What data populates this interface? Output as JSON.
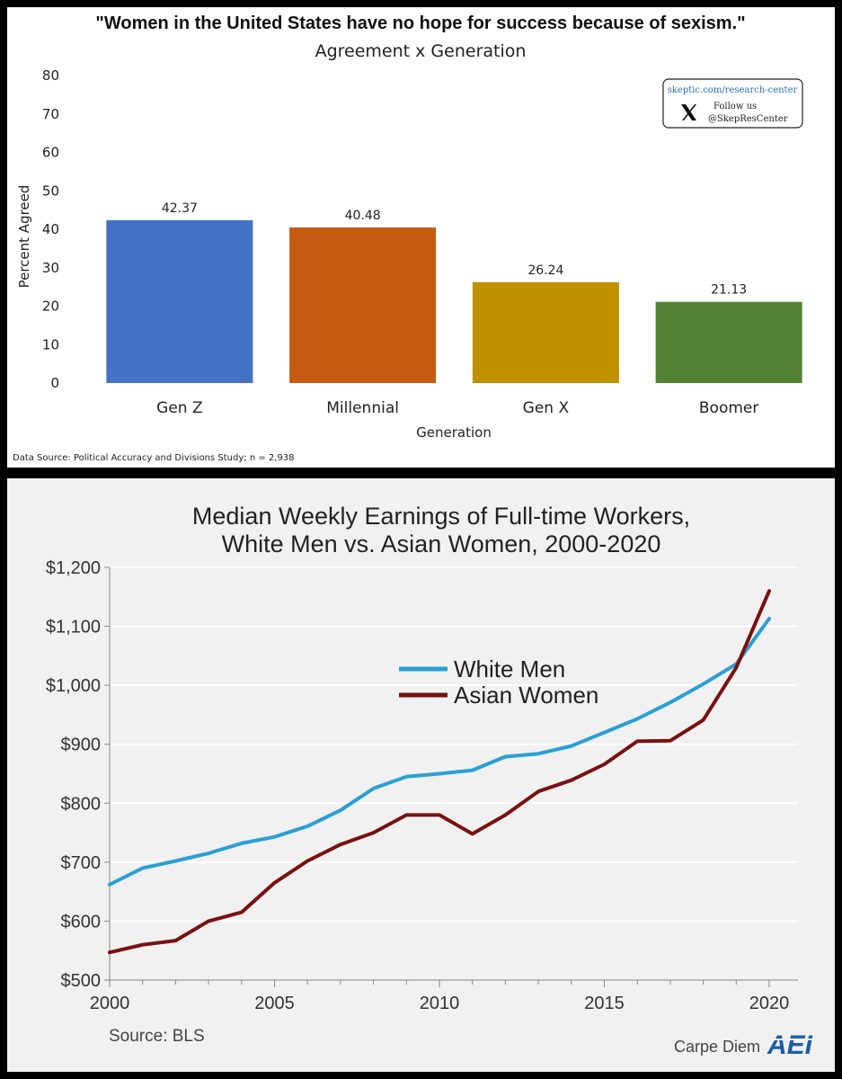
{
  "chart_data": [
    {
      "type": "bar",
      "title": "\"Women in the United States have no hope for success because of sexism.\"",
      "subtitle": "Agreement x Generation",
      "xlabel": "Generation",
      "ylabel": "Percent Agreed",
      "categories": [
        "Gen Z",
        "Millennial",
        "Gen X",
        "Boomer"
      ],
      "values": [
        42.37,
        40.48,
        26.24,
        21.13
      ],
      "value_labels": [
        "42.37",
        "40.48",
        "26.24",
        "21.13"
      ],
      "colors": [
        "#4472c4",
        "#c55a11",
        "#bf9000",
        "#548235"
      ],
      "ylim": [
        0,
        80
      ],
      "yticks": [
        0,
        10,
        20,
        30,
        40,
        50,
        60,
        70,
        80
      ],
      "ytick_labels": [
        "0",
        "10",
        "20",
        "30",
        "40",
        "50",
        "60",
        "70",
        "80"
      ],
      "grid": false,
      "source": "Data Source: Political Accuracy and Divisions Study; n = 2,938",
      "badge": {
        "url": "skeptic.com/research-center",
        "line1": "Follow us",
        "line2": "@SkepResCenter",
        "icon": "x-logo-icon"
      }
    },
    {
      "type": "line",
      "title": [
        "Median Weekly Earnings of Full-time Workers,",
        "White Men vs. Asian Women, 2000-2020"
      ],
      "x": [
        2000,
        2001,
        2002,
        2003,
        2004,
        2005,
        2006,
        2007,
        2008,
        2009,
        2010,
        2011,
        2012,
        2013,
        2014,
        2015,
        2016,
        2017,
        2018,
        2019,
        2020
      ],
      "series": [
        {
          "name": "White Men",
          "color": "#2a9fd6",
          "values": [
            662,
            690,
            702,
            715,
            732,
            743,
            761,
            788,
            825,
            845,
            850,
            856,
            879,
            884,
            897,
            920,
            943,
            971,
            1002,
            1036,
            1113
          ]
        },
        {
          "name": "Asian Women",
          "color": "#7a1010",
          "values": [
            547,
            560,
            567,
            600,
            615,
            665,
            702,
            730,
            750,
            780,
            780,
            748,
            780,
            820,
            839,
            866,
            905,
            906,
            941,
            1030,
            1160
          ]
        }
      ],
      "xlim": [
        2000,
        2020
      ],
      "xticks": [
        2000,
        2005,
        2010,
        2015,
        2020
      ],
      "xtick_labels": [
        "2000",
        "2005",
        "2010",
        "2015",
        "2020"
      ],
      "ylim": [
        500,
        1200
      ],
      "yticks": [
        500,
        600,
        700,
        800,
        900,
        1000,
        1100,
        1200
      ],
      "ytick_labels": [
        "$500",
        "$600",
        "$700",
        "$800",
        "$900",
        "$1,000",
        "$1,100",
        "$1,200"
      ],
      "grid": true,
      "legend_position": "center",
      "source": "Source: BLS",
      "credit": "Carpe Diem",
      "logo": "AEI"
    }
  ]
}
